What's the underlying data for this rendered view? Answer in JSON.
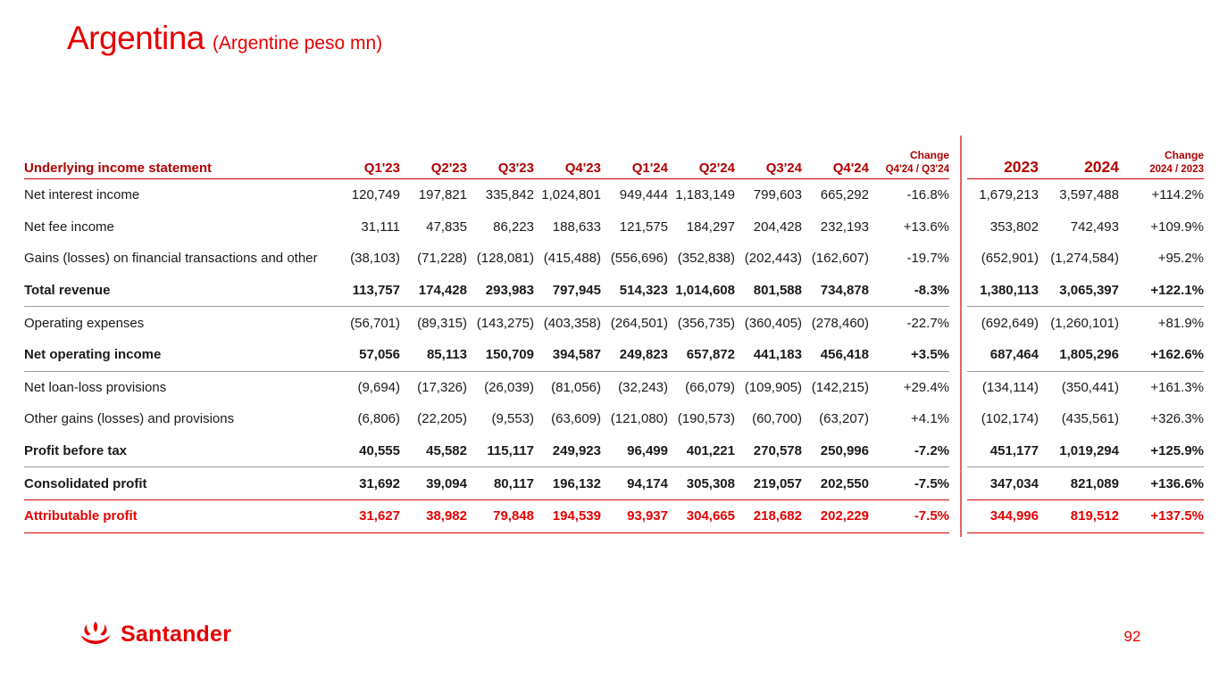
{
  "page": {
    "title": "Argentina",
    "subtitle": "(Argentine peso mn)",
    "page_number": "92",
    "brand": "Santander",
    "colors": {
      "accent_red": "#e60000",
      "header_red": "#b30000",
      "line_red": "#d40000",
      "line_gray": "#9b9b9b",
      "divider_pink": "#e06666",
      "text": "#1a1a1a"
    }
  },
  "table": {
    "header": {
      "label": "Underlying income statement",
      "quarters": [
        "Q1'23",
        "Q2'23",
        "Q3'23",
        "Q4'23",
        "Q1'24",
        "Q2'24",
        "Q3'24",
        "Q4'24"
      ],
      "change_q_line1": "Change",
      "change_q_line2": "Q4'24 / Q3'24",
      "years": [
        "2023",
        "2024"
      ],
      "change_y_line1": "Change",
      "change_y_line2": "2024 / 2023"
    },
    "rows": [
      {
        "label": "Net interest income",
        "values": [
          "120,749",
          "197,821",
          "335,842",
          "1,024,801",
          "949,444",
          "1,183,149",
          "799,603",
          "665,292"
        ],
        "change_q": "-16.8%",
        "years": [
          "1,679,213",
          "3,597,488"
        ],
        "change_y": "+114.2%",
        "style": "normal",
        "sep_after": "none"
      },
      {
        "label": "Net fee income",
        "values": [
          "31,111",
          "47,835",
          "86,223",
          "188,633",
          "121,575",
          "184,297",
          "204,428",
          "232,193"
        ],
        "change_q": "+13.6%",
        "years": [
          "353,802",
          "742,493"
        ],
        "change_y": "+109.9%",
        "style": "normal",
        "sep_after": "none"
      },
      {
        "label": "Gains (losses) on financial transactions and other",
        "values": [
          "(38,103)",
          "(71,228)",
          "(128,081)",
          "(415,488)",
          "(556,696)",
          "(352,838)",
          "(202,443)",
          "(162,607)"
        ],
        "change_q": "-19.7%",
        "years": [
          "(652,901)",
          "(1,274,584)"
        ],
        "change_y": "+95.2%",
        "style": "normal",
        "sep_after": "none"
      },
      {
        "label": "Total revenue",
        "values": [
          "113,757",
          "174,428",
          "293,983",
          "797,945",
          "514,323",
          "1,014,608",
          "801,588",
          "734,878"
        ],
        "change_q": "-8.3%",
        "years": [
          "1,380,113",
          "3,065,397"
        ],
        "change_y": "+122.1%",
        "style": "bold",
        "sep_after": "gray"
      },
      {
        "label": "Operating expenses",
        "values": [
          "(56,701)",
          "(89,315)",
          "(143,275)",
          "(403,358)",
          "(264,501)",
          "(356,735)",
          "(360,405)",
          "(278,460)"
        ],
        "change_q": "-22.7%",
        "years": [
          "(692,649)",
          "(1,260,101)"
        ],
        "change_y": "+81.9%",
        "style": "normal",
        "sep_after": "none"
      },
      {
        "label": "Net operating income",
        "values": [
          "57,056",
          "85,113",
          "150,709",
          "394,587",
          "249,823",
          "657,872",
          "441,183",
          "456,418"
        ],
        "change_q": "+3.5%",
        "years": [
          "687,464",
          "1,805,296"
        ],
        "change_y": "+162.6%",
        "style": "bold",
        "sep_after": "gray"
      },
      {
        "label": "Net loan-loss provisions",
        "values": [
          "(9,694)",
          "(17,326)",
          "(26,039)",
          "(81,056)",
          "(32,243)",
          "(66,079)",
          "(109,905)",
          "(142,215)"
        ],
        "change_q": "+29.4%",
        "years": [
          "(134,114)",
          "(350,441)"
        ],
        "change_y": "+161.3%",
        "style": "normal",
        "sep_after": "none"
      },
      {
        "label": "Other gains (losses) and provisions",
        "values": [
          "(6,806)",
          "(22,205)",
          "(9,553)",
          "(63,609)",
          "(121,080)",
          "(190,573)",
          "(60,700)",
          "(63,207)"
        ],
        "change_q": "+4.1%",
        "years": [
          "(102,174)",
          "(435,561)"
        ],
        "change_y": "+326.3%",
        "style": "normal",
        "sep_after": "none"
      },
      {
        "label": "Profit before tax",
        "values": [
          "40,555",
          "45,582",
          "115,117",
          "249,923",
          "96,499",
          "401,221",
          "270,578",
          "250,996"
        ],
        "change_q": "-7.2%",
        "years": [
          "451,177",
          "1,019,294"
        ],
        "change_y": "+125.9%",
        "style": "bold",
        "sep_after": "gray"
      },
      {
        "label": "Consolidated profit",
        "values": [
          "31,692",
          "39,094",
          "80,117",
          "196,132",
          "94,174",
          "305,308",
          "219,057",
          "202,550"
        ],
        "change_q": "-7.5%",
        "years": [
          "347,034",
          "821,089"
        ],
        "change_y": "+136.6%",
        "style": "bold",
        "sep_after": "red"
      },
      {
        "label": "Attributable profit",
        "values": [
          "31,627",
          "38,982",
          "79,848",
          "194,539",
          "93,937",
          "304,665",
          "218,682",
          "202,229"
        ],
        "change_q": "-7.5%",
        "years": [
          "344,996",
          "819,512"
        ],
        "change_y": "+137.5%",
        "style": "red-bold",
        "sep_after": "red"
      }
    ]
  }
}
